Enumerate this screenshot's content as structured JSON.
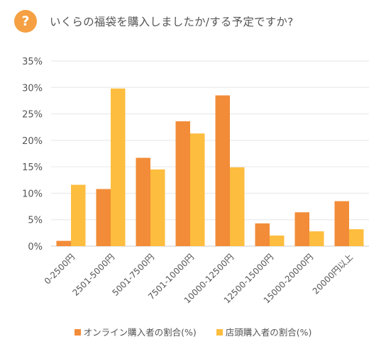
{
  "header": {
    "badge": "?",
    "title": "いくらの福袋を購入しましたか/する予定ですか?"
  },
  "colors": {
    "online": "#f28c38",
    "store": "#fdbd3e",
    "badge": "#f5a043",
    "grid": "#e6e6e6",
    "text": "#555555"
  },
  "chart_data": {
    "type": "bar",
    "title": "いくらの福袋を購入しましたか/する予定ですか?",
    "categories": [
      "0-2500円",
      "2501-5000円",
      "5001-7500円",
      "7501-10000円",
      "10000-12500円",
      "12500-15000円",
      "15000-20000円",
      "20000円以上"
    ],
    "series": [
      {
        "name": "オンライン購入者の割合(%)",
        "values": [
          1.0,
          10.8,
          16.7,
          23.6,
          28.5,
          4.3,
          6.4,
          8.5
        ]
      },
      {
        "name": "店頭購入者の割合(%)",
        "values": [
          11.6,
          29.8,
          14.5,
          21.3,
          14.9,
          2.0,
          2.8,
          3.2
        ]
      }
    ],
    "ylim": [
      0,
      35
    ],
    "yticks": [
      0,
      5,
      10,
      15,
      20,
      25,
      30,
      35
    ],
    "ytick_labels": [
      "0%",
      "5%",
      "10%",
      "15%",
      "20%",
      "25%",
      "30%",
      "35%"
    ],
    "xlabel": "",
    "ylabel": "",
    "grid": true,
    "legend_position": "bottom"
  }
}
